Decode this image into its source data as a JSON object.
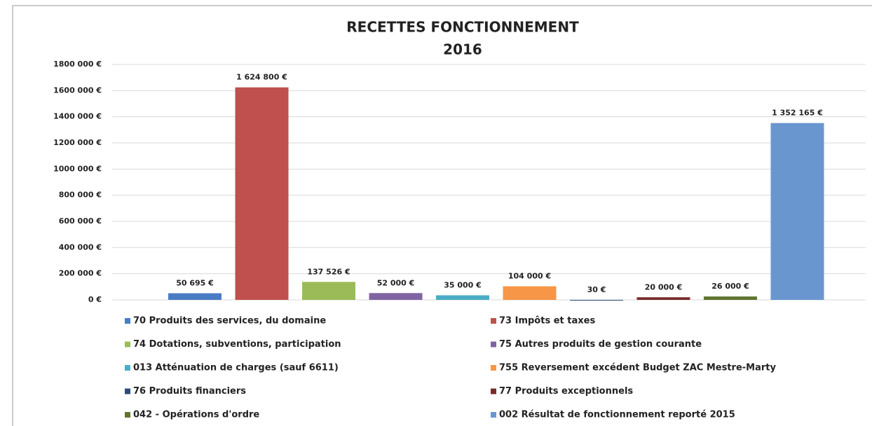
{
  "chart_data": {
    "type": "bar",
    "title": "RECETTES FONCTIONNEMENT",
    "subtitle": "2016",
    "categories": [
      null
    ],
    "series": [
      {
        "name": "70 Produits des services, du domaine",
        "color": "#4a7cc4",
        "values": [
          50695
        ],
        "value_labels": [
          "50 695 €"
        ]
      },
      {
        "name": "73 Impôts et taxes",
        "color": "#c0504d",
        "values": [
          1624800
        ],
        "value_labels": [
          "1 624 800 €"
        ]
      },
      {
        "name": "74 Dotations, subventions, participation",
        "color": "#9bbb59",
        "values": [
          137526
        ],
        "value_labels": [
          "137 526 €"
        ]
      },
      {
        "name": "75 Autres produits de gestion courante",
        "color": "#8064a2",
        "values": [
          52000
        ],
        "value_labels": [
          "52 000 €"
        ]
      },
      {
        "name": "013 Atténuation de charges (sauf 6611)",
        "color": "#4bacc6",
        "values": [
          35000
        ],
        "value_labels": [
          "35 000 €"
        ]
      },
      {
        "name": "755 Reversement excédent Budget ZAC Mestre-Marty",
        "color": "#f79646",
        "values": [
          104000
        ],
        "value_labels": [
          "104 000 €"
        ]
      },
      {
        "name": "76 Produits financiers",
        "color": "#2c4d75",
        "values": [
          30
        ],
        "value_labels": [
          "30 €"
        ]
      },
      {
        "name": "77 Produits exceptionnels",
        "color": "#772c2a",
        "values": [
          20000
        ],
        "value_labels": [
          "20 000 €"
        ]
      },
      {
        "name": "042 - Opérations d'ordre",
        "color": "#5f7530",
        "values": [
          26000
        ],
        "value_labels": [
          "26 000 €"
        ]
      },
      {
        "name": "002 Résultat de fonctionnement reporté 2015",
        "color": "#6a96d0",
        "values": [
          1352165
        ],
        "value_labels": [
          "1 352 165 €"
        ]
      }
    ],
    "ylim": [
      0,
      1800000
    ],
    "yticks": [
      {
        "value": 0,
        "label": "0 €"
      },
      {
        "value": 200000,
        "label": "200 000 €"
      },
      {
        "value": 400000,
        "label": "400 000 €"
      },
      {
        "value": 600000,
        "label": "600 000 €"
      },
      {
        "value": 800000,
        "label": "800 000 €"
      },
      {
        "value": 1000000,
        "label": "1000 000 €"
      },
      {
        "value": 1200000,
        "label": "1200 000 €"
      },
      {
        "value": 1400000,
        "label": "1400 000 €"
      },
      {
        "value": 1600000,
        "label": "1600 000 €"
      },
      {
        "value": 1800000,
        "label": "1800 000 €"
      }
    ],
    "grid": true,
    "legend": "bottom"
  }
}
